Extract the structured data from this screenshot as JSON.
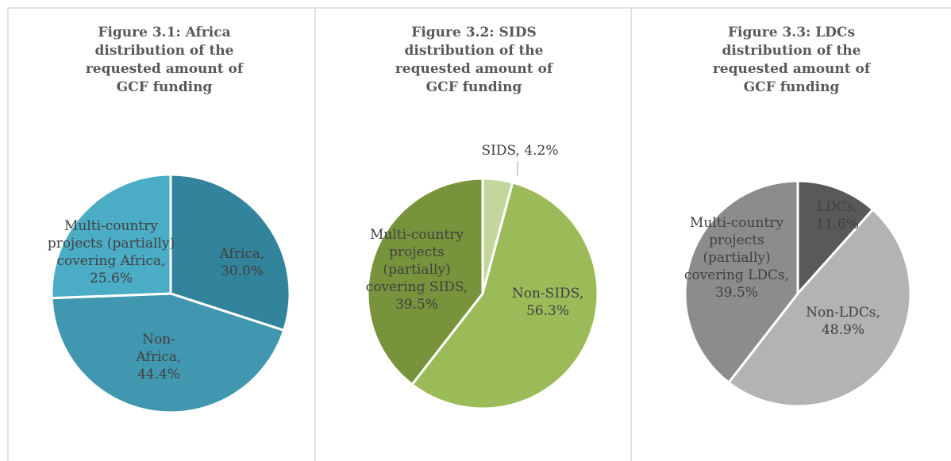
{
  "chart_data": [
    {
      "type": "pie",
      "title": "Figure 3.1: Africa distribution of the requested amount of GCF funding",
      "values": [
        30.0,
        44.4,
        25.6
      ],
      "value_labels": [
        "Africa, 30.0%",
        "Non-Africa, 44.4%",
        "Multi-country projects (partially) covering Africa, 25.6%"
      ],
      "colors": [
        "#31849b",
        "#4197b0",
        "#4bacc6"
      ]
    },
    {
      "type": "pie",
      "title": "Figure 3.2: SIDS distribution of the requested amount of GCF funding",
      "values": [
        4.2,
        56.3,
        39.5
      ],
      "value_labels": [
        "SIDS, 4.2%",
        "Non-SIDS, 56.3%",
        "Multi-country projects (partially) covering SIDS, 39.5%"
      ],
      "colors": [
        "#c3d69b",
        "#9bbb59",
        "#77933c"
      ]
    },
    {
      "type": "pie",
      "title": "Figure 3.3: LDCs distribution of the requested amount of GCF funding",
      "values": [
        11.6,
        48.9,
        39.5
      ],
      "value_labels": [
        "LDCs, 11.6%",
        "Non-LDCs, 48.9%",
        "Multi-country projects (partially) covering LDCs, 39.5%"
      ],
      "colors": [
        "#595959",
        "#b3b3b3",
        "#8c8c8c"
      ]
    }
  ]
}
